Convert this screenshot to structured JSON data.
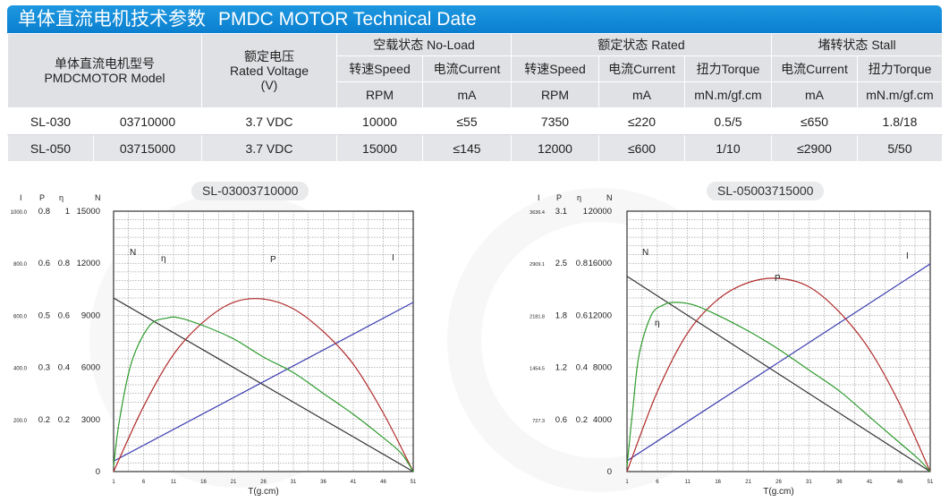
{
  "header": {
    "title_cn": "单体直流电机技术参数",
    "title_en": "PMDC MOTOR Technical Date"
  },
  "table": {
    "model_cn": "单体直流电机型号",
    "model_en": "PMDCMOTOR Model",
    "voltage_cn": "额定电压",
    "voltage_en": "Rated Voltage",
    "voltage_unit": "(V)",
    "noload": "空载状态 No-Load",
    "rated": "额定状态 Rated",
    "stall": "堵转状态 Stall",
    "speed": "转速Speed",
    "current": "电流Current",
    "torque": "扭力Torque",
    "unit_rpm": "RPM",
    "unit_ma": "mA",
    "unit_torque": "mN.m/gf.cm",
    "rows": [
      {
        "model": "SL-030",
        "code": "03710000",
        "voltage": "3.7 VDC",
        "nl_speed": "10000",
        "nl_current": "≤55",
        "r_speed": "7350",
        "r_current": "≤220",
        "r_torque": "0.5/5",
        "s_current": "≤650",
        "s_torque": "1.8/18"
      },
      {
        "model": "SL-050",
        "code": "03715000",
        "voltage": "3.7 VDC",
        "nl_speed": "15000",
        "nl_current": "≤145",
        "r_speed": "12000",
        "r_current": "≤600",
        "r_torque": "1/10",
        "s_current": "≤2900",
        "s_torque": "5/50"
      }
    ]
  },
  "colors": {
    "title_bar": "#0a7fcf",
    "current_line": "#3b3bb0",
    "power_line": "#b02a2a",
    "efficiency_line": "#2d9a2d",
    "speed_line": "#333333"
  },
  "chart_data": [
    {
      "type": "line",
      "title": "SL-03003710000",
      "xlabel": "T(g.cm)",
      "axis_heads": {
        "I": "I",
        "P": "P",
        "eta": "η",
        "N": "N"
      },
      "x_ticks": [
        "1",
        "6",
        "11",
        "16",
        "21",
        "26",
        "31",
        "36",
        "41",
        "46",
        "51"
      ],
      "xlim": [
        1,
        51
      ],
      "axis_I": {
        "ticks": [
          "1000.0",
          "800.0",
          "600.0",
          "400.0",
          "200.0"
        ],
        "range": [
          0,
          1000
        ]
      },
      "axis_P": {
        "ticks": [
          "0.8",
          "0.6",
          "0.5",
          "0.3",
          "0.2"
        ],
        "range": [
          0,
          0.8
        ]
      },
      "axis_eta": {
        "ticks": [
          "1",
          "0.8",
          "0.6",
          "0.4",
          "0.2"
        ],
        "range": [
          0,
          1
        ]
      },
      "axis_N": {
        "ticks": [
          "15000",
          "12000",
          "9000",
          "6000",
          "3000",
          "0"
        ],
        "range": [
          0,
          15000
        ]
      },
      "series": [
        {
          "name": "N",
          "label": "N",
          "color": "#333333",
          "axis": "N",
          "x": [
            1,
            51
          ],
          "y": [
            10000,
            0
          ]
        },
        {
          "name": "I",
          "label": "I",
          "color": "#3b3bb0",
          "axis": "I",
          "x": [
            1,
            51
          ],
          "y": [
            40,
            650
          ]
        },
        {
          "name": "P",
          "label": "P",
          "color": "#b02a2a",
          "axis": "P",
          "x": [
            1,
            6,
            11,
            16,
            21,
            26,
            31,
            36,
            41,
            46,
            51
          ],
          "y": [
            0,
            0.2,
            0.36,
            0.46,
            0.52,
            0.53,
            0.5,
            0.43,
            0.33,
            0.18,
            0
          ]
        },
        {
          "name": "η",
          "label": "η",
          "color": "#2d9a2d",
          "axis": "eta",
          "x": [
            1,
            2,
            4,
            7,
            10,
            12,
            16,
            21,
            26,
            31,
            36,
            41,
            46,
            49,
            51
          ],
          "y": [
            0.02,
            0.2,
            0.42,
            0.56,
            0.59,
            0.59,
            0.56,
            0.51,
            0.44,
            0.38,
            0.3,
            0.22,
            0.13,
            0.07,
            0
          ]
        }
      ]
    },
    {
      "type": "line",
      "title": "SL-05003715000",
      "xlabel": "T(g.cm)",
      "axis_heads": {
        "I": "I",
        "P": "P",
        "eta": "η",
        "N": "N"
      },
      "x_ticks": [
        "1",
        "6",
        "11",
        "16",
        "21",
        "26",
        "31",
        "36",
        "41",
        "46",
        "51"
      ],
      "xlim": [
        1,
        51
      ],
      "axis_I": {
        "ticks": [
          "3636.4",
          "2909.1",
          "2181.8",
          "1454.5",
          "727.3"
        ],
        "range": [
          0,
          3636.4
        ]
      },
      "axis_P": {
        "ticks": [
          "3.1",
          "2.5",
          "1.8",
          "1.2",
          "0.6"
        ],
        "range": [
          0,
          3.1
        ]
      },
      "axis_eta": {
        "ticks": [
          "1",
          "0.8",
          "0.6",
          "0.4",
          "0.2"
        ],
        "range": [
          0,
          1
        ]
      },
      "axis_N": {
        "ticks": [
          "20000",
          "16000",
          "12000",
          "8000",
          "4000",
          "0"
        ],
        "range": [
          0,
          20000
        ]
      },
      "series": [
        {
          "name": "N",
          "label": "N",
          "color": "#333333",
          "axis": "N",
          "x": [
            1,
            51
          ],
          "y": [
            15000,
            0
          ]
        },
        {
          "name": "I",
          "label": "I",
          "color": "#3b3bb0",
          "axis": "I",
          "x": [
            1,
            51
          ],
          "y": [
            150,
            2900
          ]
        },
        {
          "name": "P",
          "label": "P",
          "color": "#b02a2a",
          "axis": "P",
          "x": [
            1,
            6,
            11,
            16,
            21,
            26,
            31,
            36,
            41,
            46,
            51
          ],
          "y": [
            0,
            0.95,
            1.65,
            2.05,
            2.25,
            2.3,
            2.2,
            1.9,
            1.45,
            0.8,
            0
          ]
        },
        {
          "name": "η",
          "label": "η",
          "color": "#2d9a2d",
          "axis": "eta",
          "x": [
            1,
            2,
            3,
            5,
            7,
            9,
            12,
            16,
            21,
            26,
            31,
            36,
            41,
            46,
            49,
            51
          ],
          "y": [
            0.02,
            0.25,
            0.45,
            0.6,
            0.64,
            0.65,
            0.64,
            0.6,
            0.54,
            0.47,
            0.39,
            0.31,
            0.21,
            0.11,
            0.05,
            0
          ]
        }
      ]
    }
  ]
}
